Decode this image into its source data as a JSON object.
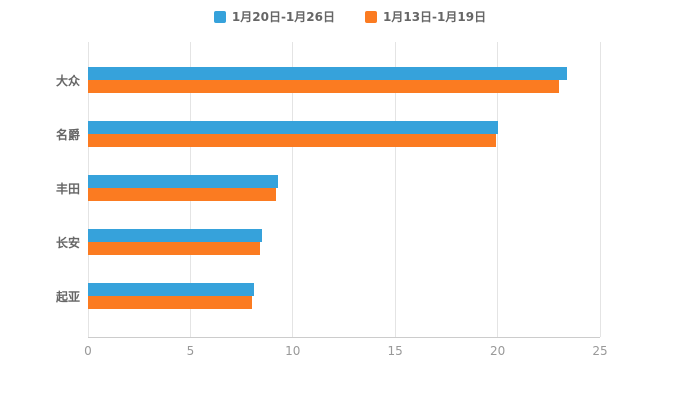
{
  "chart_data": {
    "type": "bar",
    "orientation": "horizontal",
    "categories": [
      "大众",
      "名爵",
      "丰田",
      "长安",
      "起亚"
    ],
    "series": [
      {
        "name": "1月20日-1月26日",
        "color": "#36A2DB",
        "values": [
          23.4,
          20.0,
          9.3,
          8.5,
          8.1
        ]
      },
      {
        "name": "1月13日-1月19日",
        "color": "#FB7B21",
        "values": [
          23.0,
          19.9,
          9.2,
          8.4,
          8.0
        ]
      }
    ],
    "xlim": [
      0,
      25
    ],
    "xticks": [
      0,
      5,
      10,
      15,
      20,
      25
    ],
    "grid": true,
    "legend_position": "top"
  }
}
